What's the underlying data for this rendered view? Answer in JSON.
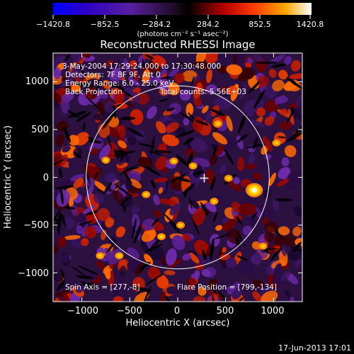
{
  "chart_data": {
    "type": "heatmap",
    "title": "Reconstructed RHESSI Image",
    "xlabel": "Heliocentric X (arcsec)",
    "ylabel": "Heliocentric Y (arcsec)",
    "xlim": [
      -1300,
      1300
    ],
    "ylim": [
      -1300,
      1300
    ],
    "x_ticks": [
      -1000,
      -500,
      0,
      500,
      1000
    ],
    "y_ticks": [
      -1000,
      -500,
      0,
      500,
      1000
    ],
    "x_tick_labels": [
      "−1000",
      "−500",
      "0",
      "500",
      "1000"
    ],
    "y_tick_labels": [
      "−1000",
      "−500",
      "0",
      "500",
      "1000"
    ],
    "colorbar": {
      "min": -1420.8,
      "max": 1420.8,
      "tick_labels": [
        "−1420.8",
        "−852.5",
        "−284.2",
        "284.2",
        "852.5",
        "1420.8"
      ],
      "units": "(photons cm⁻² s⁻¹ asec⁻²)",
      "colors": [
        "#0000ff",
        "#2a00c0",
        "#5a1a9a",
        "#3a1a3a",
        "#000000",
        "#6a0000",
        "#c81e00",
        "#ff6a00",
        "#ffc000",
        "#ffffff"
      ]
    },
    "annotations": [
      "3-May-2004 17:29:24.000 to 17:30:48.000",
      "Detectors: 7F 8F 9F, Att 0",
      "Energy Range: 6.0 - 25.0 keV",
      "Back Projection",
      "Total counts: 5.56E+03"
    ],
    "solar_disk_radius": 955,
    "spin_axis": [
      277,
      -8
    ],
    "flare_position": [
      799,
      -134
    ],
    "spin_axis_label": "Spin Axis = [277,-8]",
    "flare_position_label": "Flare Position = [799,-134]"
  },
  "footer": {
    "timestamp": "17-Jun-2013 17:01"
  }
}
